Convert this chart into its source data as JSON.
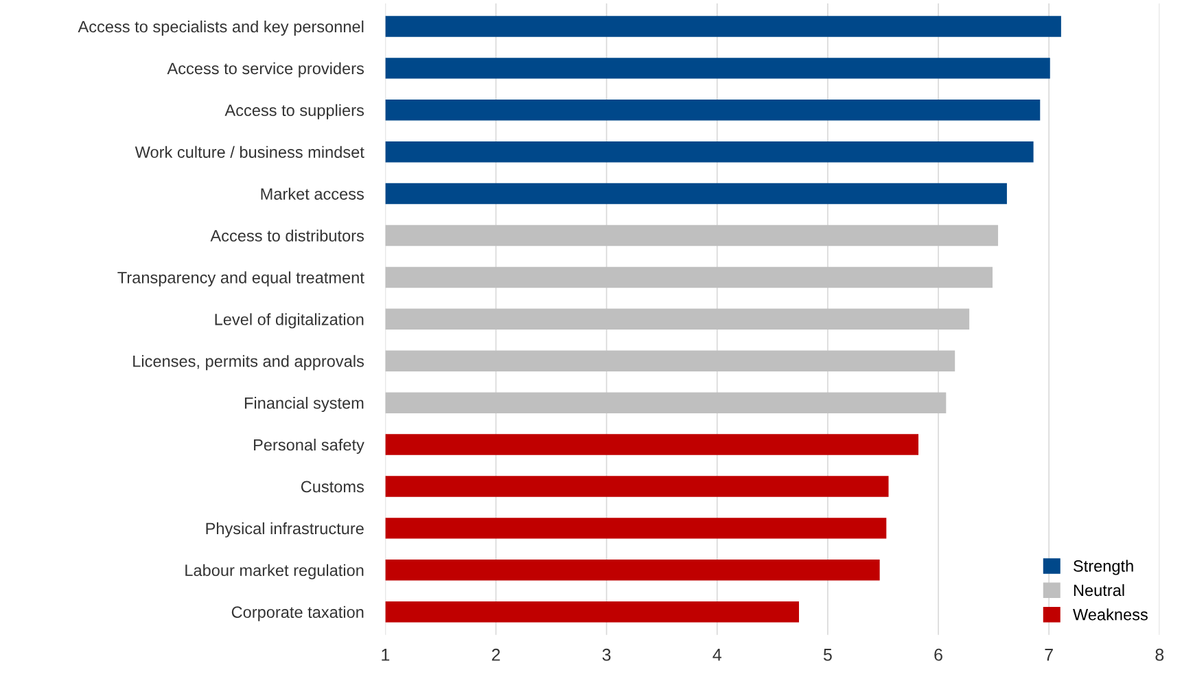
{
  "chart_data": {
    "type": "bar",
    "orientation": "horizontal",
    "categories": [
      "Access to specialists and key personnel",
      "Access to service providers",
      "Access to suppliers",
      "Work culture / business mindset",
      "Market access",
      "Access to distributors",
      "Transparency and equal treatment",
      "Level of digitalization",
      "Licenses, permits and approvals",
      "Financial system",
      "Personal safety",
      "Customs",
      "Physical infrastructure",
      "Labour market regulation",
      "Corporate taxation"
    ],
    "series": [
      {
        "name": "Strength",
        "color": "#00488a",
        "values": [
          7.11,
          7.01,
          6.92,
          6.86,
          6.62,
          null,
          null,
          null,
          null,
          null,
          null,
          null,
          null,
          null,
          null
        ]
      },
      {
        "name": "Neutral",
        "color": "#bfbfbf",
        "values": [
          null,
          null,
          null,
          null,
          null,
          6.54,
          6.49,
          6.28,
          6.15,
          6.07,
          null,
          null,
          null,
          null,
          null
        ]
      },
      {
        "name": "Weakness",
        "color": "#c00000",
        "values": [
          null,
          null,
          null,
          null,
          null,
          null,
          null,
          null,
          null,
          null,
          5.82,
          5.55,
          5.53,
          5.47,
          4.74
        ]
      }
    ],
    "xlim": [
      1,
      8
    ],
    "xticks": [
      1,
      2,
      3,
      4,
      5,
      6,
      7,
      8
    ],
    "grid": "x",
    "legend": "bottom right"
  }
}
